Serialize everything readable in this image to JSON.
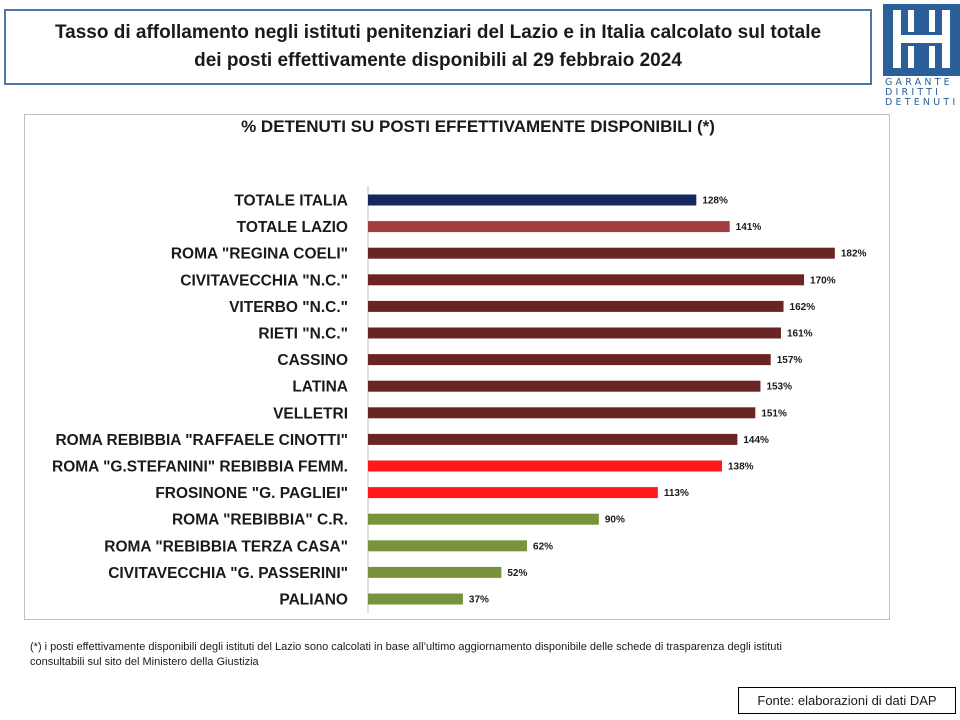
{
  "header": {
    "title_line1": "Tasso di affollamento negli istituti penitenziari del Lazio e in Italia calcolato sul totale",
    "title_line2": "dei posti effettivamente disponibili al 29 febbraio 2024"
  },
  "logo": {
    "icon": "garante-logo-icon",
    "text_line1": "GARANTE",
    "text_line2": "DIRITTI",
    "text_line3": "DETENUTI",
    "color": "#2b5f98"
  },
  "chart_data": {
    "type": "bar",
    "orientation": "horizontal",
    "title": "% DETENUTI SU POSTI EFFETTIVAMENTE DISPONIBILI (*)",
    "xlim": [
      0,
      200
    ],
    "grid": false,
    "legend": "none",
    "categories": [
      "TOTALE ITALIA",
      "TOTALE LAZIO",
      "ROMA \"REGINA COELI\"",
      "CIVITAVECCHIA \"N.C.\"",
      "VITERBO \"N.C.\"",
      "RIETI \"N.C.\"",
      "CASSINO",
      "LATINA",
      "VELLETRI",
      "ROMA REBIBBIA \"RAFFAELE CINOTTI\"",
      "ROMA \"G.STEFANINI\" REBIBBIA FEMM.",
      "FROSINONE \"G. PAGLIEI\"",
      "ROMA \"REBIBBIA\" C.R.",
      "ROMA \"REBIBBIA TERZA CASA\"",
      "CIVITAVECCHIA \"G. PASSERINI\"",
      "PALIANO"
    ],
    "values": [
      128,
      141,
      182,
      170,
      162,
      161,
      157,
      153,
      151,
      144,
      138,
      113,
      90,
      62,
      52,
      37
    ],
    "value_labels": [
      "128%",
      "141%",
      "182%",
      "170%",
      "162%",
      "161%",
      "157%",
      "153%",
      "151%",
      "144%",
      "138%",
      "113%",
      "90%",
      "62%",
      "52%",
      "37%"
    ],
    "colors": [
      "#17285e",
      "#a33c3c",
      "#6b2424",
      "#6b2424",
      "#6b2424",
      "#6b2424",
      "#6b2424",
      "#6b2424",
      "#6b2424",
      "#6b2424",
      "#ff1a1a",
      "#ff1a1a",
      "#77933c",
      "#77933c",
      "#77933c",
      "#77933c"
    ]
  },
  "footnote": {
    "line1": "(*) i posti effettivamente disponibili  degli istituti del Lazio sono  calcolati in base all’ultimo aggiornamento disponibile  delle schede  di trasparenza degli istituti",
    "line2": "consultabili  sul sito del Ministero della Giustizia"
  },
  "source": {
    "text": "Fonte: elaborazioni di dati DAP"
  }
}
